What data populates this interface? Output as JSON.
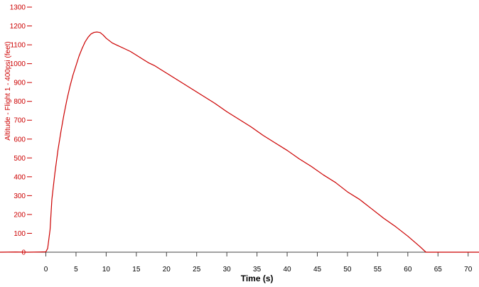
{
  "chart_data": {
    "type": "line",
    "title": "",
    "xlabel": "Time (s)",
    "ylabel": "Altitude - Flight 1 - 400psi (feet)",
    "xlim": [
      -7.6,
      71.8
    ],
    "ylim": [
      0,
      1300
    ],
    "x_ticks": [
      0,
      5,
      10,
      15,
      20,
      25,
      30,
      35,
      40,
      45,
      50,
      55,
      60,
      65,
      70
    ],
    "y_ticks": [
      0,
      100,
      200,
      300,
      400,
      500,
      600,
      700,
      800,
      900,
      1000,
      1100,
      1200,
      1300
    ],
    "grid": false,
    "legend": "none",
    "series": [
      {
        "color": "#cc0000",
        "points": [
          [
            -7.6,
            0
          ],
          [
            -5,
            1
          ],
          [
            -3,
            0
          ],
          [
            -1,
            1
          ],
          [
            0,
            2
          ],
          [
            0.3,
            20
          ],
          [
            0.7,
            120
          ],
          [
            1,
            280
          ],
          [
            1.5,
            420
          ],
          [
            2,
            540
          ],
          [
            2.5,
            640
          ],
          [
            3,
            730
          ],
          [
            3.5,
            810
          ],
          [
            4,
            880
          ],
          [
            4.5,
            940
          ],
          [
            5,
            990
          ],
          [
            5.5,
            1040
          ],
          [
            6,
            1080
          ],
          [
            6.5,
            1115
          ],
          [
            7,
            1140
          ],
          [
            7.5,
            1158
          ],
          [
            8,
            1166
          ],
          [
            8.5,
            1168
          ],
          [
            9,
            1165
          ],
          [
            9.5,
            1152
          ],
          [
            10,
            1135
          ],
          [
            11,
            1110
          ],
          [
            12,
            1095
          ],
          [
            13,
            1080
          ],
          [
            14,
            1065
          ],
          [
            15,
            1045
          ],
          [
            16,
            1025
          ],
          [
            17,
            1005
          ],
          [
            18,
            990
          ],
          [
            19,
            970
          ],
          [
            20,
            950
          ],
          [
            22,
            910
          ],
          [
            24,
            870
          ],
          [
            26,
            830
          ],
          [
            28,
            790
          ],
          [
            30,
            745
          ],
          [
            32,
            705
          ],
          [
            34,
            665
          ],
          [
            36,
            620
          ],
          [
            38,
            580
          ],
          [
            40,
            540
          ],
          [
            42,
            495
          ],
          [
            44,
            455
          ],
          [
            46,
            410
          ],
          [
            48,
            370
          ],
          [
            50,
            320
          ],
          [
            52,
            280
          ],
          [
            54,
            230
          ],
          [
            56,
            180
          ],
          [
            58,
            135
          ],
          [
            60,
            85
          ],
          [
            62,
            30
          ],
          [
            63,
            0
          ],
          [
            66,
            0
          ],
          [
            71.8,
            0
          ]
        ]
      }
    ]
  }
}
